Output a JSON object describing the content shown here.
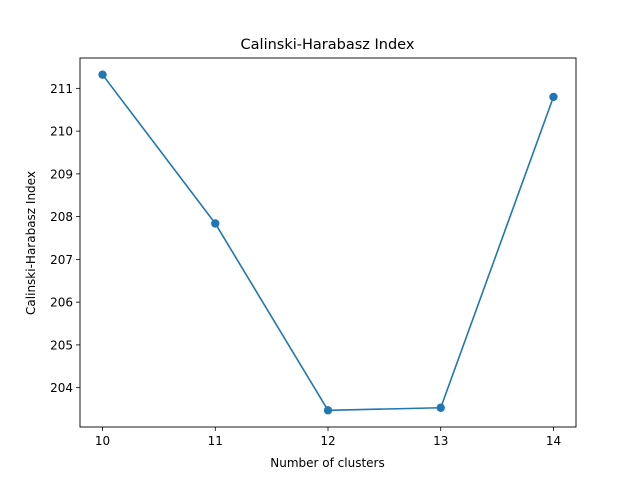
{
  "chart_data": {
    "type": "line",
    "title": "Calinski-Harabasz Index",
    "xlabel": "Number of clusters",
    "ylabel": "Calinski-Harabasz Index",
    "x": [
      10,
      11,
      12,
      13,
      14
    ],
    "series": [
      {
        "values": [
          211.32,
          207.84,
          203.47,
          203.53,
          210.8
        ]
      }
    ],
    "xticks": [
      10,
      11,
      12,
      13,
      14
    ],
    "yticks": [
      204,
      205,
      206,
      207,
      208,
      209,
      210,
      211
    ],
    "xlim": [
      9.8,
      14.2
    ],
    "ylim": [
      203.08,
      211.71
    ],
    "grid": false,
    "marker": "circle",
    "colors": {
      "series": "#1f77b4",
      "axes": "#000000",
      "background": "#ffffff"
    }
  }
}
